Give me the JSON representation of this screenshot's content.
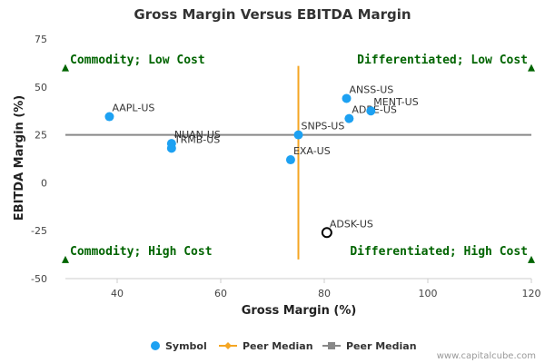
{
  "chart_data": {
    "type": "scatter",
    "title": "Gross Margin Versus EBITDA Margin",
    "xlabel": "Gross Margin (%)",
    "ylabel": "EBITDA Margin (%)",
    "xlim": [
      30,
      120
    ],
    "ylim": [
      -50,
      75
    ],
    "xticks": [
      40,
      60,
      80,
      100,
      120
    ],
    "yticks": [
      75,
      50,
      25,
      0,
      -25,
      -50
    ],
    "grid": false,
    "points": [
      {
        "label": "AAPL-US",
        "x": 38.5,
        "y": 34.5
      },
      {
        "label": "NUAN-US",
        "x": 50.5,
        "y": 20.5
      },
      {
        "label": "TRMB-US",
        "x": 50.5,
        "y": 18
      },
      {
        "label": "EXA-US",
        "x": 73.5,
        "y": 12
      },
      {
        "label": "SNPS-US",
        "x": 75,
        "y": 25
      },
      {
        "label": "ANSS-US",
        "x": 84.3,
        "y": 44
      },
      {
        "label": "ADBE-US",
        "x": 84.8,
        "y": 33.5
      },
      {
        "label": "MENT-US",
        "x": 89,
        "y": 37.5
      }
    ],
    "highlight": {
      "label": "ADSK-US",
      "x": 80.5,
      "y": -26
    },
    "peer_median_x": 75,
    "peer_median_y": 25,
    "peer_median_y_range": [
      -40,
      61
    ],
    "quadrants": {
      "top_left": "Commodity; Low Cost",
      "top_right": "Differentiated; Low Cost",
      "bottom_left": "Commodity; High Cost",
      "bottom_right": "Differentiated; High Cost"
    },
    "legend": {
      "position": "bottom",
      "items": [
        "Symbol",
        "Peer Median",
        "Peer Median"
      ]
    },
    "credit": "www.capitalcube.com"
  },
  "colors": {
    "point": "#1da1f2",
    "vertical_median": "#f5a623",
    "horizontal_median": "#888888",
    "quadrant_marker": "#006400",
    "highlight_stroke": "#000000"
  }
}
